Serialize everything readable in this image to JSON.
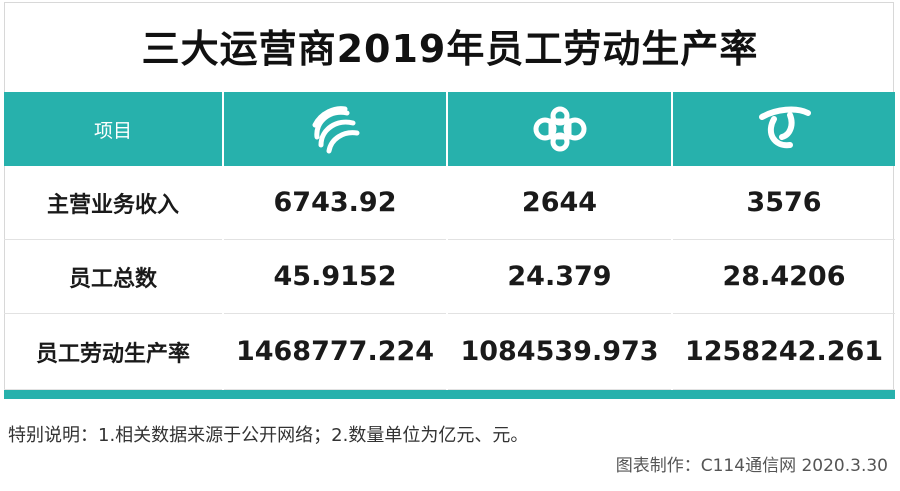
{
  "header": {
    "title": "三大运营商2019年员工劳动生产率"
  },
  "table": {
    "corner": "项目",
    "rows": [
      [
        "主营业务收入",
        "6743.92",
        "2644",
        "3576"
      ],
      [
        "员工总数",
        "45.9152",
        "24.379",
        "28.4206"
      ],
      [
        "员工劳动生产率",
        "1468777.224",
        "1084539.973",
        "1258242.261"
      ]
    ]
  },
  "footer": {
    "note": "特别说明：1.相关数据来源于公开网络；2.数量单位为亿元、元。",
    "source": "图表制作：C114通信网 2020.3.30"
  }
}
